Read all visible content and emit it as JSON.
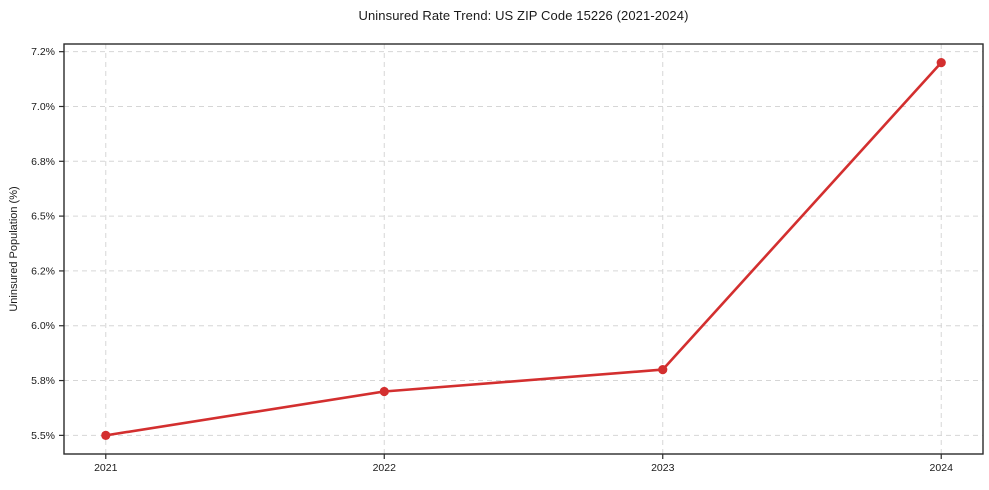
{
  "chart_data": {
    "type": "line",
    "title": "Uninsured Rate Trend: US ZIP Code 15226 (2021-2024)",
    "xlabel": "",
    "ylabel": "Uninsured Population (%)",
    "x": [
      2021,
      2022,
      2023,
      2024
    ],
    "values": [
      5.5,
      5.7,
      5.8,
      7.2
    ],
    "x_tick_labels": [
      "2021",
      "2022",
      "2023",
      "2024"
    ],
    "y_ticks": [
      {
        "value": 5.5,
        "label": "5.5%"
      },
      {
        "value": 5.75,
        "label": "5.8%"
      },
      {
        "value": 6.0,
        "label": "6.0%"
      },
      {
        "value": 6.25,
        "label": "6.2%"
      },
      {
        "value": 6.5,
        "label": "6.5%"
      },
      {
        "value": 6.75,
        "label": "6.8%"
      },
      {
        "value": 7.0,
        "label": "7.0%"
      },
      {
        "value": 7.25,
        "label": "7.2%"
      }
    ],
    "xlim": [
      2020.85,
      2024.15
    ],
    "ylim": [
      5.415,
      7.285
    ],
    "grid": {
      "visible": true,
      "style": "dashed",
      "axes": "both"
    },
    "legend": "none",
    "colors": {
      "line": "#d32f2f",
      "marker": "#d32f2f",
      "grid": "#d6d6d6",
      "spine": "#2b2b2b",
      "text": "#1a1a1a",
      "background": "#ffffff"
    }
  }
}
